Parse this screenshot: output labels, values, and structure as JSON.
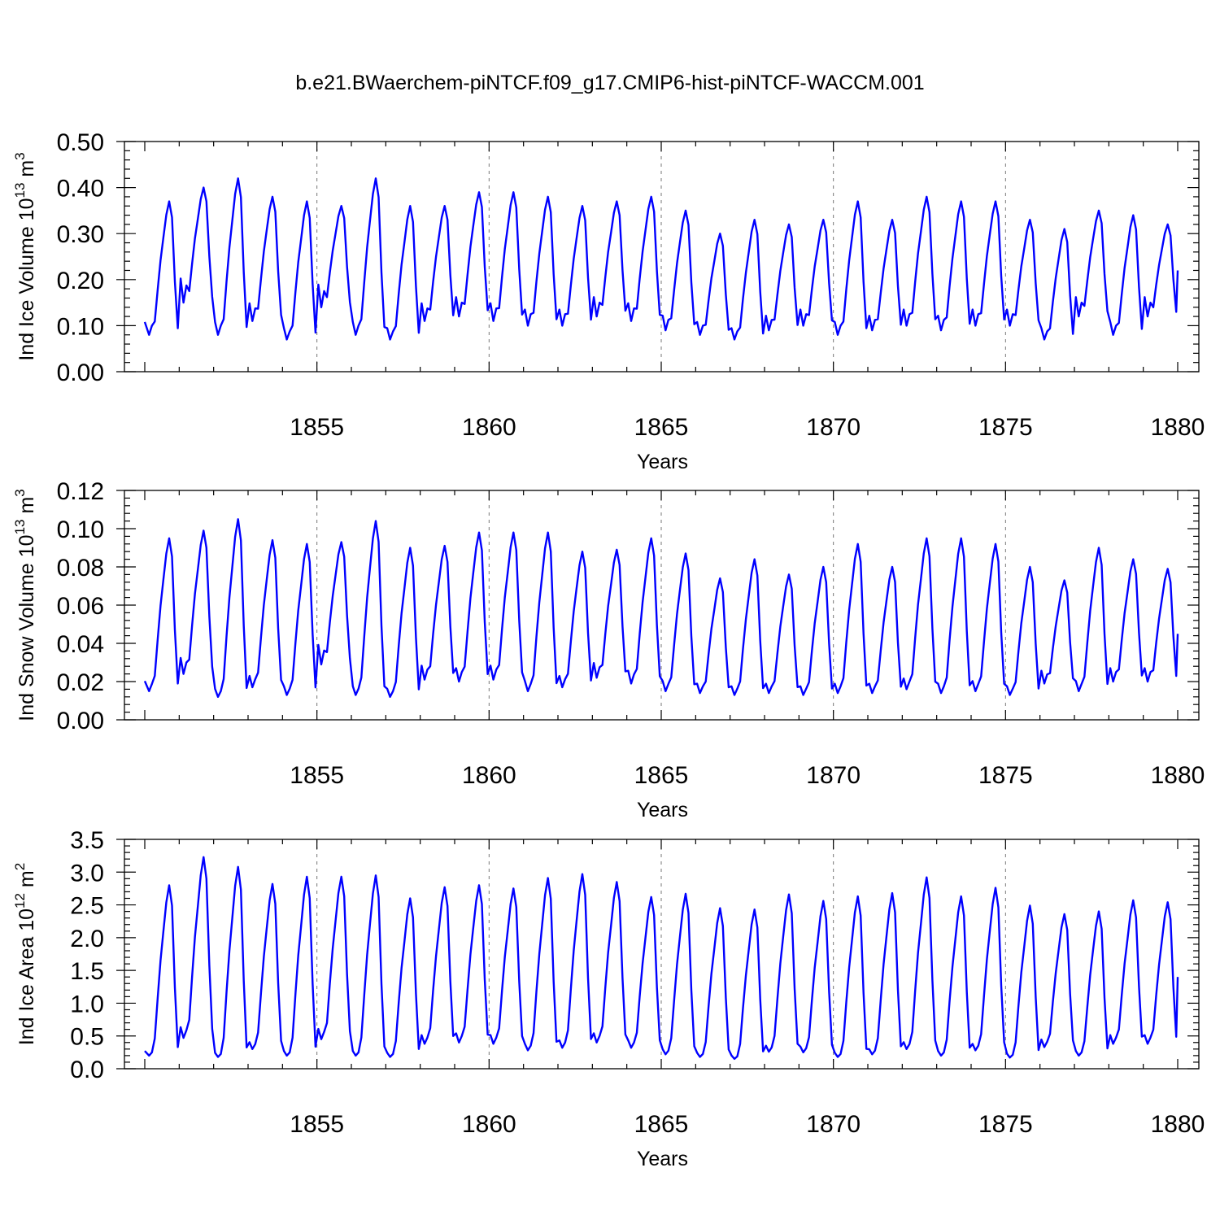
{
  "title": "b.e21.BWaerchem-piNTCF.f09_g17.CMIP6-hist-piNTCF-WACCM.001",
  "series_color": "#0000ff",
  "chart_data": [
    {
      "type": "line",
      "ylabel_main": "Ind Ice Volume 10",
      "ylabel_exp": "13",
      "ylabel_unit": " m",
      "ylabel_unit_exp": "3",
      "xlabel": "Years",
      "xlim": [
        1850,
        1880
      ],
      "ylim": [
        0,
        0.5
      ],
      "x_ticks": [
        "1855",
        "1860",
        "1865",
        "1870",
        "1875",
        "1880"
      ],
      "y_ticks": [
        "0.00",
        "0.10",
        "0.20",
        "0.30",
        "0.40",
        "0.50"
      ],
      "y_major": 0.1,
      "y_minor": 0.02,
      "grid": "vertical dashed at 1855, 1860, 1865, 1870, 1875",
      "annual_minima": [
        0.08,
        0.15,
        0.08,
        0.11,
        0.07,
        0.14,
        0.08,
        0.07,
        0.11,
        0.12,
        0.11,
        0.1,
        0.1,
        0.12,
        0.11,
        0.09,
        0.08,
        0.07,
        0.09,
        0.1,
        0.08,
        0.09,
        0.1,
        0.09,
        0.1,
        0.1,
        0.07,
        0.12,
        0.08,
        0.12
      ],
      "annual_maxima": [
        0.37,
        0.4,
        0.42,
        0.38,
        0.37,
        0.36,
        0.42,
        0.36,
        0.36,
        0.39,
        0.39,
        0.38,
        0.36,
        0.37,
        0.38,
        0.35,
        0.3,
        0.33,
        0.32,
        0.33,
        0.37,
        0.33,
        0.38,
        0.37,
        0.37,
        0.33,
        0.31,
        0.35,
        0.34,
        0.32
      ],
      "end_value": 0.22
    },
    {
      "type": "line",
      "ylabel_main": "Ind Snow Volume 10",
      "ylabel_exp": "13",
      "ylabel_unit": " m",
      "ylabel_unit_exp": "3",
      "xlabel": "Years",
      "xlim": [
        1850,
        1880
      ],
      "ylim": [
        0,
        0.12
      ],
      "x_ticks": [
        "1855",
        "1860",
        "1865",
        "1870",
        "1875",
        "1880"
      ],
      "y_ticks": [
        "0.00",
        "0.02",
        "0.04",
        "0.06",
        "0.08",
        "0.10",
        "0.12"
      ],
      "y_major": 0.02,
      "y_minor": 0.004,
      "grid": "vertical dashed at 1855, 1860, 1865, 1870, 1875",
      "annual_minima": [
        0.015,
        0.024,
        0.012,
        0.017,
        0.013,
        0.029,
        0.013,
        0.012,
        0.021,
        0.02,
        0.021,
        0.015,
        0.017,
        0.022,
        0.019,
        0.015,
        0.014,
        0.013,
        0.014,
        0.013,
        0.014,
        0.014,
        0.016,
        0.014,
        0.015,
        0.013,
        0.019,
        0.015,
        0.02,
        0.02
      ],
      "annual_maxima": [
        0.095,
        0.099,
        0.105,
        0.094,
        0.092,
        0.093,
        0.104,
        0.09,
        0.091,
        0.098,
        0.098,
        0.098,
        0.088,
        0.089,
        0.095,
        0.087,
        0.074,
        0.084,
        0.076,
        0.08,
        0.092,
        0.08,
        0.095,
        0.095,
        0.092,
        0.08,
        0.073,
        0.09,
        0.084,
        0.079
      ],
      "end_value": 0.045
    },
    {
      "type": "line",
      "ylabel_main": "Ind Ice Area 10",
      "ylabel_exp": "12",
      "ylabel_unit": " m",
      "ylabel_unit_exp": "2",
      "xlabel": "Years",
      "xlim": [
        1850,
        1880
      ],
      "ylim": [
        0,
        3.5
      ],
      "x_ticks": [
        "1855",
        "1860",
        "1865",
        "1870",
        "1875",
        "1880"
      ],
      "y_ticks": [
        "0.0",
        "0.5",
        "1.0",
        "1.5",
        "2.0",
        "2.5",
        "3.0",
        "3.5"
      ],
      "y_major": 0.5,
      "y_minor": 0.1,
      "grid": "vertical dashed at 1855, 1860, 1865, 1870, 1875",
      "annual_minima": [
        0.2,
        0.47,
        0.18,
        0.3,
        0.2,
        0.45,
        0.2,
        0.18,
        0.38,
        0.4,
        0.38,
        0.28,
        0.32,
        0.4,
        0.32,
        0.22,
        0.18,
        0.15,
        0.26,
        0.25,
        0.18,
        0.22,
        0.3,
        0.2,
        0.28,
        0.17,
        0.33,
        0.2,
        0.38,
        0.38
      ],
      "annual_maxima": [
        2.8,
        3.23,
        3.08,
        2.82,
        2.93,
        2.93,
        2.95,
        2.6,
        2.77,
        2.8,
        2.75,
        2.91,
        2.97,
        2.85,
        2.62,
        2.67,
        2.45,
        2.43,
        2.66,
        2.56,
        2.63,
        2.68,
        2.92,
        2.63,
        2.76,
        2.49,
        2.36,
        2.4,
        2.57,
        2.54
      ],
      "end_value": 1.4
    }
  ]
}
